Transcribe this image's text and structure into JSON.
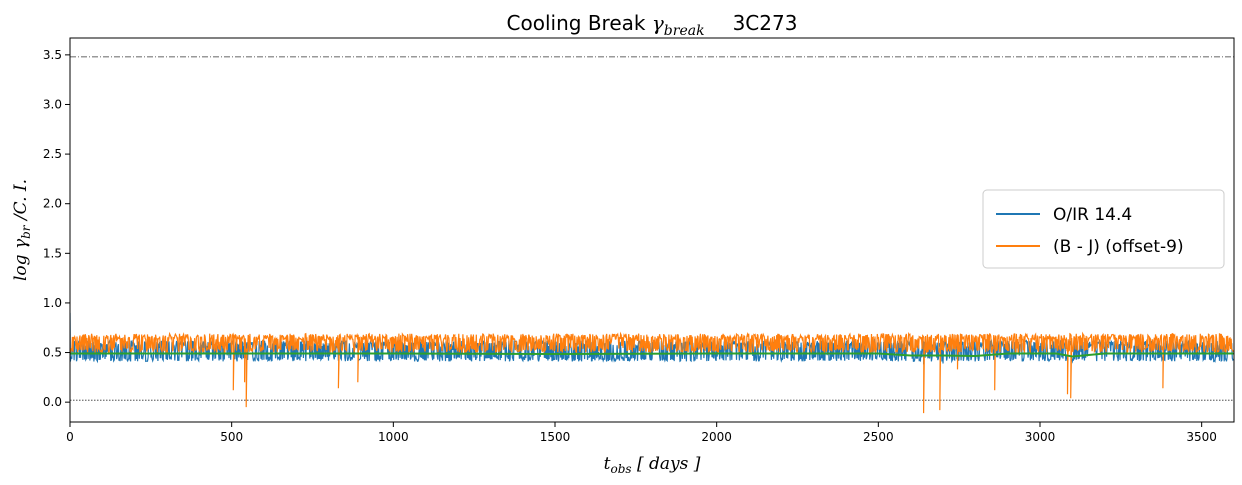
{
  "chart_data": {
    "type": "line",
    "title": "Cooling Break γbreak    3C273",
    "title_parts": {
      "main": "Cooling Break ",
      "symbol": "γ",
      "subscript": "break",
      "object": "3C273"
    },
    "xlabel": "tobs [ days ]",
    "xlabel_parts": {
      "symbol": "t",
      "subscript": "obs",
      "rest": " [ days ]"
    },
    "ylabel": "log γbr /C. I.",
    "ylabel_parts": {
      "pre": "log ",
      "symbol": "γ",
      "subscript": "br",
      "rest": " /C. I."
    },
    "xlim": [
      0,
      3600
    ],
    "ylim": [
      -0.2,
      3.67
    ],
    "xticks": [
      0,
      500,
      1000,
      1500,
      2000,
      2500,
      3000,
      3500
    ],
    "xtick_labels": [
      "0",
      "500",
      "1000",
      "1500",
      "2000",
      "2500",
      "3000",
      "3500"
    ],
    "yticks": [
      0.0,
      0.5,
      1.0,
      1.5,
      2.0,
      2.5,
      3.0,
      3.5
    ],
    "ytick_labels": [
      "0.0",
      "0.5",
      "1.0",
      "1.5",
      "2.0",
      "2.5",
      "3.0",
      "3.5"
    ],
    "grid": false,
    "legend": "center-right",
    "reference_lines": [
      {
        "y": 3.48,
        "style": "dash-dot",
        "color": "#333333"
      },
      {
        "y": 0.02,
        "style": "dotted",
        "color": "#333333"
      }
    ],
    "series": [
      {
        "name": "O/IR 14.4",
        "color": "#1f77b4",
        "band_low": 0.41,
        "band_high": 0.62,
        "start_value": 0.9,
        "dips": [
          {
            "x": 2640,
            "y": 0.38
          },
          {
            "x": 2700,
            "y": 0.39
          }
        ]
      },
      {
        "name": "(B - J)  (offset-9)",
        "color": "#ff7f0e",
        "band_low": 0.5,
        "band_high": 0.69,
        "dips": [
          {
            "x": 505,
            "y": 0.12
          },
          {
            "x": 540,
            "y": 0.2
          },
          {
            "x": 545,
            "y": -0.05
          },
          {
            "x": 830,
            "y": 0.14
          },
          {
            "x": 890,
            "y": 0.2
          },
          {
            "x": 2640,
            "y": -0.11
          },
          {
            "x": 2690,
            "y": -0.08
          },
          {
            "x": 2745,
            "y": 0.33
          },
          {
            "x": 2860,
            "y": 0.12
          },
          {
            "x": 3085,
            "y": 0.08
          },
          {
            "x": 3095,
            "y": 0.04
          },
          {
            "x": 3380,
            "y": 0.14
          }
        ]
      },
      {
        "name": "",
        "color": "#2ca02c",
        "points": [
          [
            0,
            0.49
          ],
          [
            500,
            0.49
          ],
          [
            1000,
            0.49
          ],
          [
            1500,
            0.485
          ],
          [
            2000,
            0.49
          ],
          [
            2500,
            0.49
          ],
          [
            2600,
            0.47
          ],
          [
            2700,
            0.47
          ],
          [
            2800,
            0.465
          ],
          [
            2900,
            0.49
          ],
          [
            3050,
            0.49
          ],
          [
            3100,
            0.46
          ],
          [
            3200,
            0.49
          ],
          [
            3600,
            0.49
          ]
        ]
      }
    ]
  }
}
